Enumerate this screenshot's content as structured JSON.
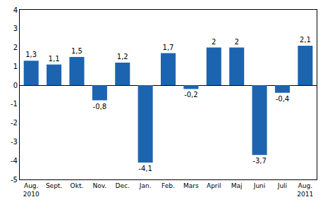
{
  "chart_data": {
    "type": "bar",
    "categories": [
      "Aug.\n2010",
      "Sept.",
      "Okt.",
      "Nov.",
      "Dec.",
      "Jan.",
      "Feb.",
      "Mars",
      "April",
      "Maj",
      "Juni",
      "Juli",
      "Aug.\n2011"
    ],
    "values": [
      1.3,
      1.1,
      1.5,
      -0.8,
      1.2,
      -4.1,
      1.7,
      -0.2,
      2,
      2,
      -3.7,
      -0.4,
      2.1
    ],
    "value_labels": [
      "1,3",
      "1,1",
      "1,5",
      "-0,8",
      "1,2",
      "-4,1",
      "1,7",
      "-0,2",
      "2",
      "2",
      "-3,7",
      "-0,4",
      "2,1"
    ],
    "color": "#1c64b0",
    "ylim": [
      -5,
      4
    ],
    "yticks": [
      -5,
      -4,
      -3,
      -2,
      -1,
      0,
      1,
      2,
      3,
      4
    ],
    "grid": false,
    "data_labels": true
  }
}
